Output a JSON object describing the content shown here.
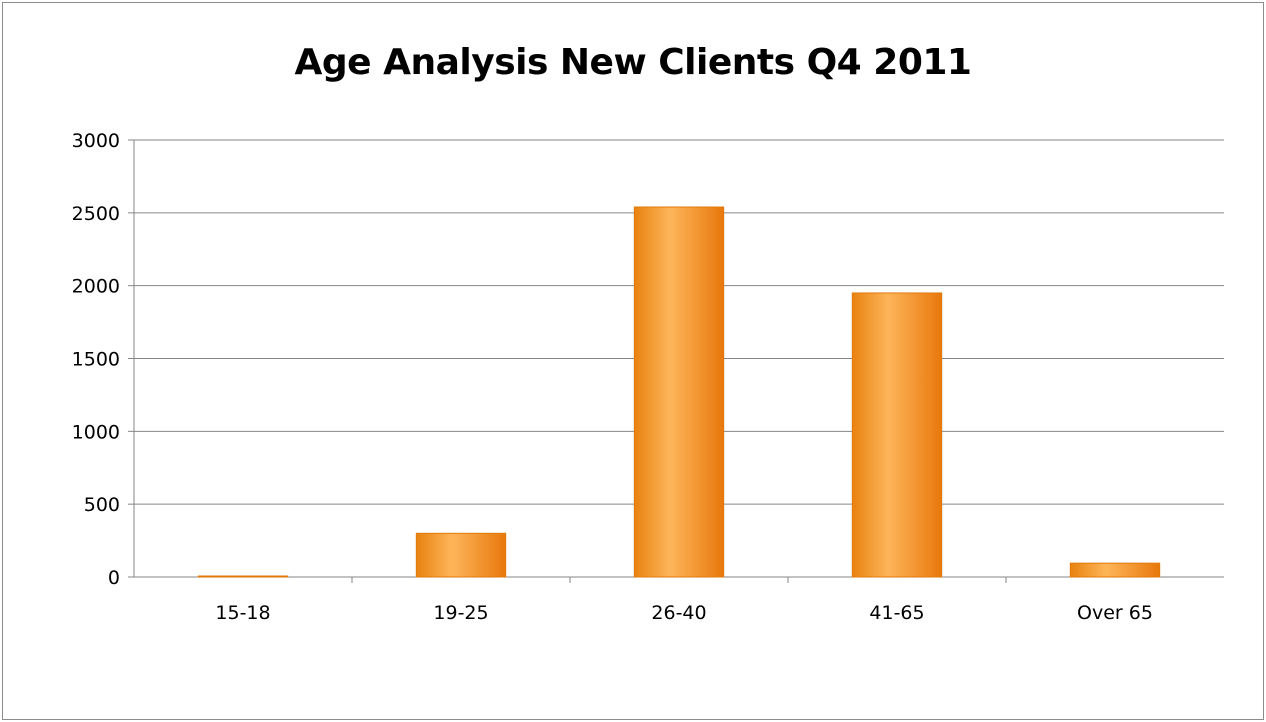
{
  "chart_data": {
    "type": "bar",
    "title": "Age Analysis New Clients Q4 2011",
    "xlabel": "",
    "ylabel": "",
    "categories": [
      "15-18",
      "19-25",
      "26-40",
      "41-65",
      "Over 65"
    ],
    "values": [
      5,
      300,
      2540,
      1950,
      95
    ],
    "ylim": [
      0,
      3000
    ],
    "yticks": [
      0,
      500,
      1000,
      1500,
      2000,
      2500,
      3000
    ],
    "grid": true,
    "legend": "none",
    "colors": {
      "bar": "#f7941d",
      "bar_light": "#fdbf6f",
      "bar_dark": "#e07a0a",
      "grid": "#868686"
    }
  }
}
